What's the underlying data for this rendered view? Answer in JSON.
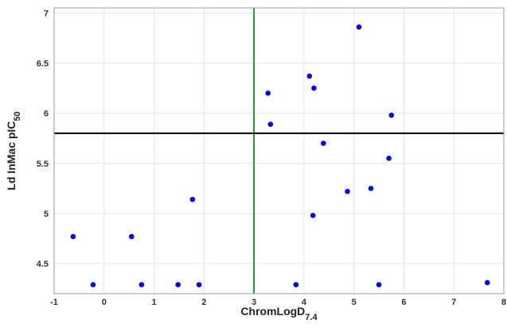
{
  "chart_data": {
    "type": "scatter",
    "title": "",
    "xlabel": "ChromLogD",
    "xlabel_sub": "7.4",
    "ylabel": "Ld InMac pIC",
    "ylabel_sub": "50",
    "xlim": [
      -1,
      8
    ],
    "ylim": [
      4.2,
      7.05
    ],
    "x_ticks": [
      -1,
      0,
      1,
      2,
      3,
      4,
      5,
      6,
      7,
      8
    ],
    "y_ticks": [
      4.5,
      5,
      5.5,
      6,
      6.5,
      7
    ],
    "x_tick_labels": [
      "-1",
      "0",
      "1",
      "2",
      "3",
      "4",
      "5",
      "6",
      "7",
      "8"
    ],
    "y_tick_labels": [
      "4.5",
      "5",
      "5.5",
      "6",
      "6.5",
      "7"
    ],
    "grid": true,
    "legend": "none",
    "reference_lines": [
      {
        "orientation": "vertical",
        "value": 3,
        "color": "#1a9a1a"
      },
      {
        "orientation": "horizontal",
        "value": 5.8,
        "color": "#000000"
      }
    ],
    "point_color": "#0000ee",
    "points": [
      {
        "x": -0.62,
        "y": 4.77
      },
      {
        "x": -0.22,
        "y": 4.29
      },
      {
        "x": 0.55,
        "y": 4.77
      },
      {
        "x": 0.75,
        "y": 4.29
      },
      {
        "x": 1.48,
        "y": 4.29
      },
      {
        "x": 1.77,
        "y": 5.14
      },
      {
        "x": 1.9,
        "y": 4.29
      },
      {
        "x": 3.28,
        "y": 6.2
      },
      {
        "x": 3.33,
        "y": 5.89
      },
      {
        "x": 3.84,
        "y": 4.29
      },
      {
        "x": 4.11,
        "y": 6.37
      },
      {
        "x": 4.18,
        "y": 4.98
      },
      {
        "x": 4.2,
        "y": 6.25
      },
      {
        "x": 4.39,
        "y": 5.7
      },
      {
        "x": 4.87,
        "y": 5.22
      },
      {
        "x": 5.1,
        "y": 6.86
      },
      {
        "x": 5.34,
        "y": 5.25
      },
      {
        "x": 5.5,
        "y": 4.29
      },
      {
        "x": 5.7,
        "y": 5.55
      },
      {
        "x": 5.75,
        "y": 5.98
      },
      {
        "x": 7.67,
        "y": 4.31
      }
    ]
  }
}
